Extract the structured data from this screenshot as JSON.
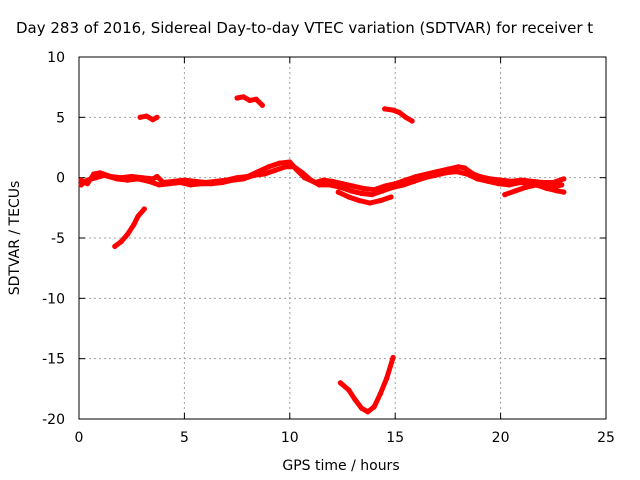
{
  "chart_data": {
    "type": "scatter",
    "title": "Day 283 of 2016, Sidereal Day-to-day VTEC variation (SDTVAR) for receiver t",
    "xlabel": "GPS time / hours",
    "ylabel": "SDTVAR / TECUs",
    "xlim": [
      0,
      25
    ],
    "ylim": [
      -20,
      10
    ],
    "x_ticks": [
      0,
      5,
      10,
      15,
      20,
      25
    ],
    "y_ticks": [
      -20,
      -15,
      -10,
      -5,
      0,
      5,
      10
    ],
    "x_tick_labels": [
      "0",
      "5",
      "10",
      "15",
      "20",
      "25"
    ],
    "y_tick_labels": [
      "-20",
      "-15",
      "-10",
      "-5",
      "0",
      "5",
      "10"
    ],
    "grid": true,
    "legend": "none",
    "series_color": "#ff0000",
    "series": [
      {
        "segments": [
          [
            [
              0.1,
              -0.2
            ],
            [
              0.4,
              -0.5
            ],
            [
              0.7,
              0.3
            ],
            [
              1.0,
              0.4
            ],
            [
              1.5,
              0.1
            ],
            [
              2.0,
              0.0
            ],
            [
              2.5,
              0.1
            ],
            [
              3.0,
              0.0
            ],
            [
              3.5,
              -0.1
            ],
            [
              3.7,
              0.1
            ],
            [
              4.0,
              -0.4
            ],
            [
              4.5,
              -0.3
            ],
            [
              5.0,
              -0.2
            ],
            [
              5.5,
              -0.3
            ],
            [
              6.0,
              -0.4
            ],
            [
              6.5,
              -0.3
            ],
            [
              7.0,
              -0.2
            ],
            [
              7.5,
              0.0
            ],
            [
              8.0,
              0.1
            ],
            [
              8.5,
              0.5
            ],
            [
              9.0,
              0.9
            ],
            [
              9.5,
              1.2
            ],
            [
              10.0,
              1.3
            ],
            [
              10.3,
              0.7
            ],
            [
              10.7,
              0.0
            ],
            [
              11.2,
              -0.4
            ],
            [
              11.6,
              -0.2
            ],
            [
              12.0,
              -0.3
            ],
            [
              12.5,
              -0.5
            ],
            [
              13.0,
              -0.7
            ],
            [
              13.5,
              -0.9
            ],
            [
              14.0,
              -1.0
            ],
            [
              14.5,
              -0.7
            ],
            [
              15.0,
              -0.5
            ],
            [
              15.5,
              -0.2
            ],
            [
              16.0,
              0.1
            ],
            [
              16.5,
              0.3
            ],
            [
              17.0,
              0.5
            ],
            [
              17.5,
              0.7
            ],
            [
              18.0,
              0.9
            ],
            [
              18.3,
              0.8
            ],
            [
              18.7,
              0.3
            ],
            [
              19.0,
              0.1
            ],
            [
              19.5,
              -0.1
            ],
            [
              20.0,
              -0.2
            ],
            [
              20.5,
              -0.3
            ],
            [
              21.0,
              -0.2
            ],
            [
              21.5,
              -0.3
            ],
            [
              22.0,
              -0.4
            ],
            [
              22.5,
              -0.4
            ],
            [
              23.0,
              -0.1
            ]
          ],
          [
            [
              0.1,
              -0.6
            ],
            [
              0.4,
              -0.2
            ],
            [
              0.8,
              0.0
            ],
            [
              1.2,
              0.2
            ],
            [
              1.8,
              -0.1
            ],
            [
              2.3,
              -0.2
            ],
            [
              2.8,
              -0.1
            ],
            [
              3.3,
              -0.3
            ],
            [
              3.8,
              -0.6
            ],
            [
              4.3,
              -0.5
            ],
            [
              4.8,
              -0.4
            ],
            [
              5.3,
              -0.6
            ],
            [
              5.8,
              -0.5
            ],
            [
              6.3,
              -0.5
            ],
            [
              6.8,
              -0.4
            ],
            [
              7.3,
              -0.2
            ],
            [
              7.8,
              -0.1
            ],
            [
              8.3,
              0.2
            ],
            [
              8.8,
              0.3
            ],
            [
              9.3,
              0.6
            ],
            [
              9.8,
              0.9
            ],
            [
              10.2,
              0.9
            ],
            [
              10.6,
              0.4
            ],
            [
              11.0,
              -0.2
            ],
            [
              11.4,
              -0.6
            ],
            [
              11.9,
              -0.6
            ],
            [
              12.4,
              -0.8
            ],
            [
              12.9,
              -1.1
            ],
            [
              13.4,
              -1.3
            ],
            [
              13.9,
              -1.4
            ],
            [
              14.4,
              -1.1
            ],
            [
              14.9,
              -0.8
            ],
            [
              15.4,
              -0.6
            ],
            [
              15.9,
              -0.3
            ],
            [
              16.4,
              0.0
            ],
            [
              16.9,
              0.2
            ],
            [
              17.4,
              0.4
            ],
            [
              17.9,
              0.5
            ],
            [
              18.4,
              0.3
            ],
            [
              18.9,
              -0.1
            ],
            [
              19.4,
              -0.3
            ],
            [
              19.9,
              -0.5
            ],
            [
              20.4,
              -0.6
            ],
            [
              20.9,
              -0.4
            ],
            [
              21.4,
              -0.5
            ],
            [
              21.9,
              -0.7
            ],
            [
              22.4,
              -0.8
            ],
            [
              22.9,
              -0.6
            ]
          ],
          [
            [
              12.3,
              -1.2
            ],
            [
              12.8,
              -1.6
            ],
            [
              13.3,
              -1.9
            ],
            [
              13.8,
              -2.1
            ],
            [
              14.3,
              -1.9
            ],
            [
              14.8,
              -1.6
            ]
          ],
          [
            [
              20.2,
              -1.4
            ],
            [
              20.7,
              -1.1
            ],
            [
              21.2,
              -0.8
            ],
            [
              21.7,
              -0.6
            ],
            [
              22.2,
              -0.9
            ],
            [
              22.7,
              -1.1
            ],
            [
              23.0,
              -1.2
            ]
          ],
          [
            [
              1.7,
              -5.7
            ],
            [
              2.0,
              -5.3
            ],
            [
              2.3,
              -4.7
            ],
            [
              2.6,
              -3.9
            ],
            [
              2.8,
              -3.2
            ],
            [
              3.1,
              -2.6
            ]
          ],
          [
            [
              2.9,
              5.0
            ],
            [
              3.2,
              5.1
            ],
            [
              3.5,
              4.8
            ],
            [
              3.7,
              5.0
            ]
          ],
          [
            [
              7.5,
              6.6
            ],
            [
              7.8,
              6.7
            ],
            [
              8.1,
              6.4
            ],
            [
              8.4,
              6.5
            ],
            [
              8.7,
              6.0
            ]
          ],
          [
            [
              14.5,
              5.7
            ],
            [
              14.9,
              5.6
            ],
            [
              15.2,
              5.4
            ],
            [
              15.5,
              5.0
            ],
            [
              15.8,
              4.7
            ]
          ],
          [
            [
              12.4,
              -17.0
            ],
            [
              12.8,
              -17.6
            ],
            [
              13.1,
              -18.4
            ],
            [
              13.4,
              -19.1
            ],
            [
              13.7,
              -19.4
            ],
            [
              14.0,
              -19.0
            ],
            [
              14.3,
              -17.9
            ],
            [
              14.6,
              -16.6
            ],
            [
              14.9,
              -14.9
            ]
          ]
        ]
      }
    ]
  }
}
